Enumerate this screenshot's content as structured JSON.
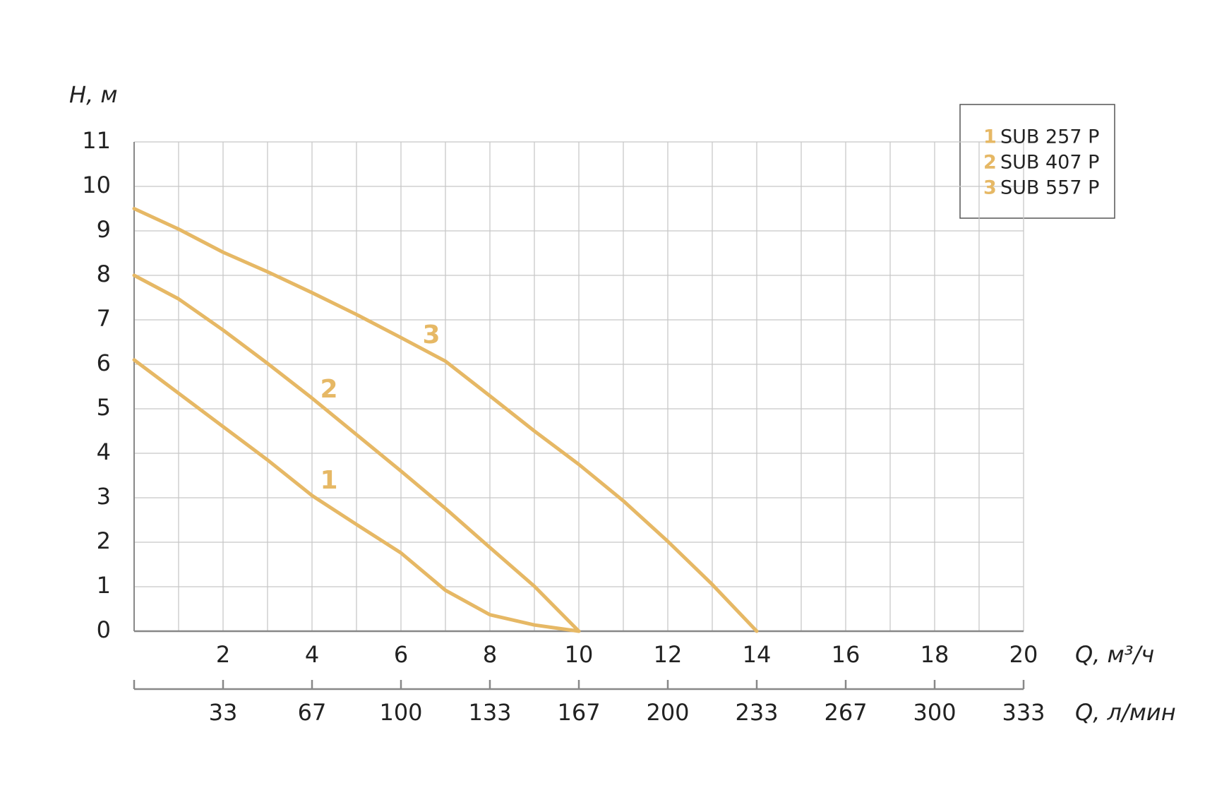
{
  "chart_data": {
    "type": "line",
    "y_label": "H, м",
    "x_label": "Q, м³/ч",
    "x2_label": "Q, л/мин",
    "xlim": [
      0,
      20
    ],
    "xticks": [
      2,
      4,
      6,
      8,
      10,
      12,
      14,
      16,
      18,
      20
    ],
    "x_minor_ticks": [
      1,
      3,
      5,
      7,
      9,
      11,
      13,
      15,
      17,
      19
    ],
    "x2lim": [
      0,
      333.33
    ],
    "x2ticks": [
      {
        "value": 33.33,
        "label": "33"
      },
      {
        "value": 66.67,
        "label": "67"
      },
      {
        "value": 100,
        "label": "100"
      },
      {
        "value": 133.33,
        "label": "133"
      },
      {
        "value": 166.67,
        "label": "167"
      },
      {
        "value": 200,
        "label": "200"
      },
      {
        "value": 233.33,
        "label": "233"
      },
      {
        "value": 266.67,
        "label": "267"
      },
      {
        "value": 300,
        "label": "300"
      },
      {
        "value": 333.33,
        "label": "333"
      }
    ],
    "ylim": [
      0,
      11
    ],
    "yticks": [
      0,
      1,
      2,
      3,
      4,
      5,
      6,
      7,
      8,
      9,
      10,
      11
    ],
    "grid": true,
    "series": [
      {
        "number": "1",
        "name": "SUB 257 P",
        "color": "#e6b865",
        "x": [
          0,
          1,
          2,
          3,
          4,
          5,
          6,
          7,
          8,
          9,
          10
        ],
        "values": [
          6.1,
          5.35,
          4.6,
          3.85,
          3.05,
          2.4,
          1.76,
          0.92,
          0.37,
          0.14,
          0
        ]
      },
      {
        "number": "2",
        "name": "SUB 407 P",
        "color": "#e6b865",
        "x": [
          0,
          1,
          2,
          3,
          4,
          5,
          6,
          7,
          8,
          9,
          10
        ],
        "values": [
          8.0,
          7.47,
          6.77,
          6.02,
          5.24,
          4.42,
          3.6,
          2.76,
          1.88,
          1.01,
          0
        ]
      },
      {
        "number": "3",
        "name": "SUB 557 P",
        "color": "#e6b865",
        "x": [
          0,
          1,
          2,
          3,
          4,
          5,
          6,
          7,
          8,
          9,
          10,
          11,
          12,
          13,
          14
        ],
        "values": [
          9.5,
          9.04,
          8.52,
          8.08,
          7.61,
          7.12,
          6.6,
          6.07,
          5.29,
          4.5,
          3.75,
          2.93,
          2.02,
          1.05,
          0
        ]
      }
    ]
  }
}
